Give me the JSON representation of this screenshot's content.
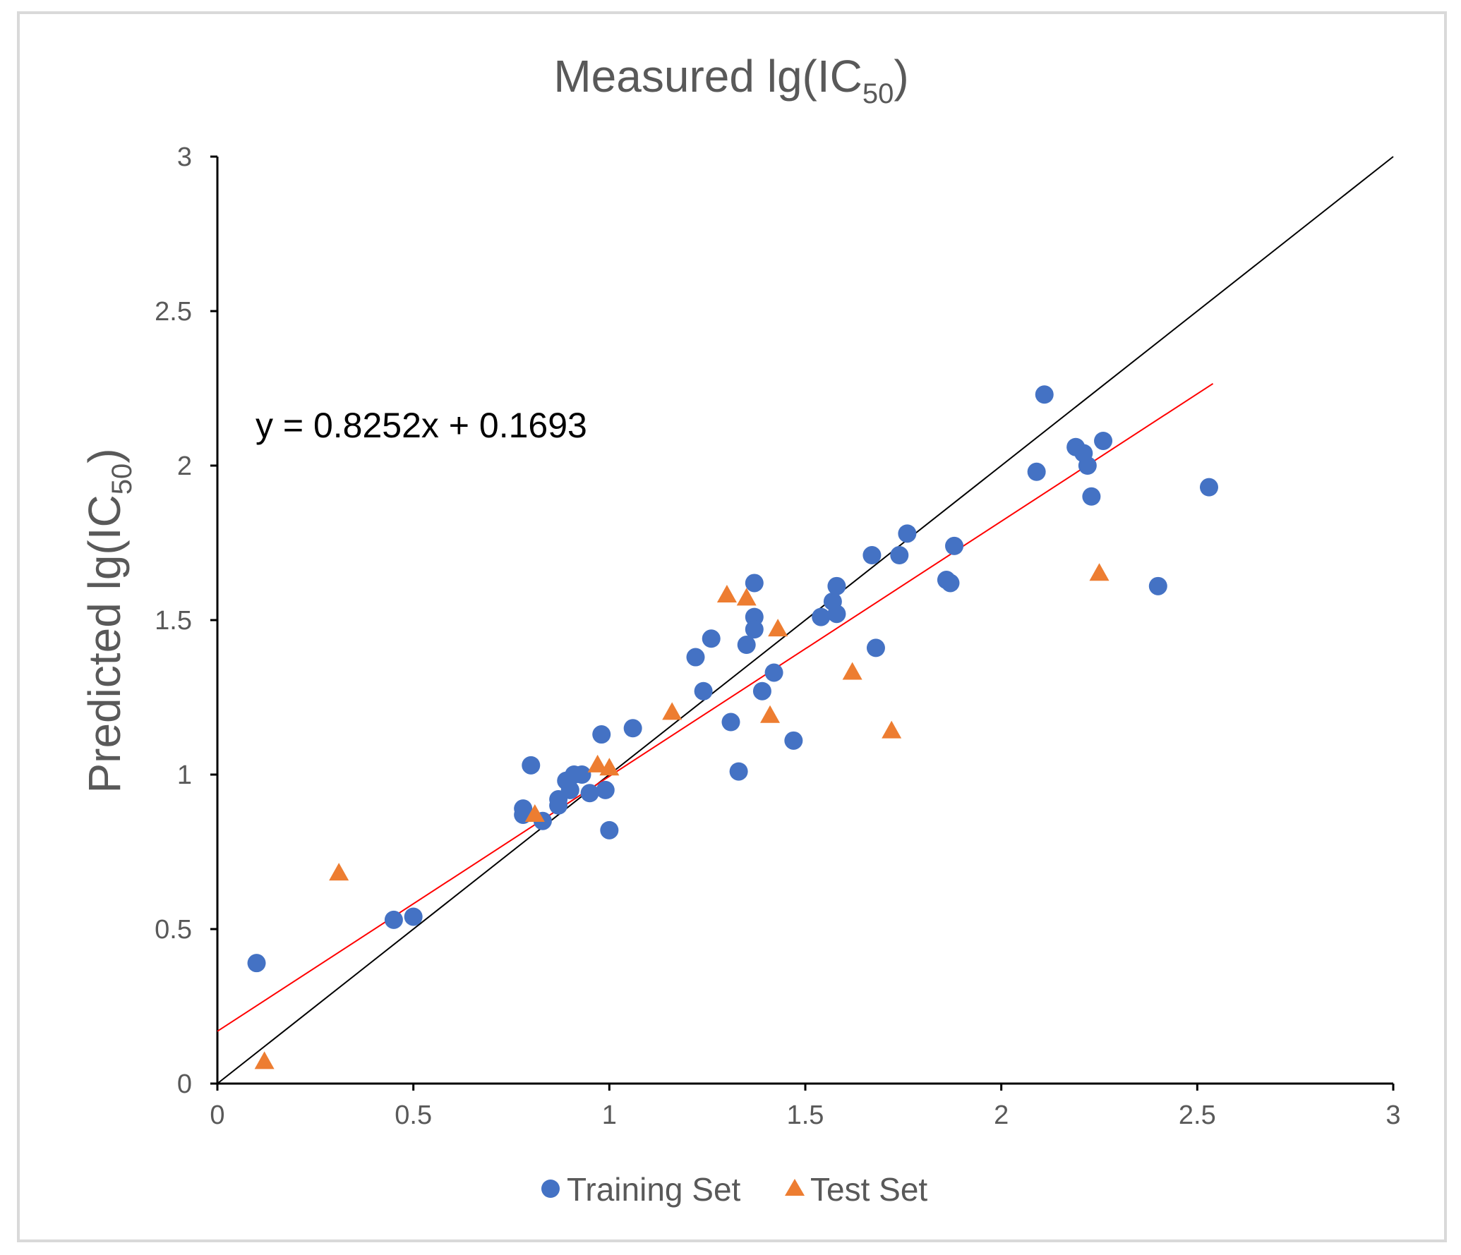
{
  "chart_data": {
    "type": "scatter",
    "title": "Measured lg(IC",
    "title_sub": "50",
    "title_close": ")",
    "xlabel": "",
    "ylabel": "Predicted lg(IC",
    "ylabel_sub": "50",
    "ylabel_close": ")",
    "xlim": [
      0,
      3
    ],
    "ylim": [
      0,
      3
    ],
    "x_ticks": [
      0,
      0.5,
      1,
      1.5,
      2,
      2.5,
      3
    ],
    "x_tick_labels": [
      "0",
      "0.5",
      "1",
      "1.5",
      "2",
      "2.5",
      "3"
    ],
    "y_ticks": [
      0,
      0.5,
      1,
      1.5,
      2,
      2.5,
      3
    ],
    "y_tick_labels": [
      "0",
      "0.5",
      "1",
      "1.5",
      "2",
      "2.5",
      "3"
    ],
    "grid": false,
    "legend_position": "bottom",
    "equation_label": "y = 0.8252x + 0.1693",
    "reference_line": {
      "name": "y = x",
      "slope": 1,
      "intercept": 0,
      "x_range": [
        0,
        3
      ],
      "color": "#000000"
    },
    "fit_line": {
      "slope": 0.8252,
      "intercept": 0.1693,
      "x_range": [
        0,
        2.54
      ],
      "color": "#ff0000"
    },
    "series": [
      {
        "name": "Training Set",
        "marker": "circle",
        "color": "#4472c4",
        "points": [
          [
            0.1,
            0.39
          ],
          [
            0.45,
            0.53
          ],
          [
            0.5,
            0.54
          ],
          [
            0.78,
            0.87
          ],
          [
            0.78,
            0.89
          ],
          [
            0.8,
            1.03
          ],
          [
            0.83,
            0.85
          ],
          [
            0.87,
            0.9
          ],
          [
            0.87,
            0.92
          ],
          [
            0.89,
            0.98
          ],
          [
            0.9,
            0.95
          ],
          [
            0.91,
            1.0
          ],
          [
            0.93,
            1.0
          ],
          [
            0.95,
            0.94
          ],
          [
            0.98,
            1.13
          ],
          [
            0.99,
            0.95
          ],
          [
            1.0,
            0.82
          ],
          [
            1.06,
            1.15
          ],
          [
            1.22,
            1.38
          ],
          [
            1.24,
            1.27
          ],
          [
            1.26,
            1.44
          ],
          [
            1.31,
            1.17
          ],
          [
            1.33,
            1.01
          ],
          [
            1.35,
            1.42
          ],
          [
            1.37,
            1.62
          ],
          [
            1.37,
            1.51
          ],
          [
            1.37,
            1.47
          ],
          [
            1.39,
            1.27
          ],
          [
            1.42,
            1.33
          ],
          [
            1.47,
            1.11
          ],
          [
            1.54,
            1.51
          ],
          [
            1.57,
            1.56
          ],
          [
            1.58,
            1.61
          ],
          [
            1.58,
            1.52
          ],
          [
            1.67,
            1.71
          ],
          [
            1.68,
            1.41
          ],
          [
            1.74,
            1.71
          ],
          [
            1.76,
            1.78
          ],
          [
            1.86,
            1.63
          ],
          [
            1.87,
            1.62
          ],
          [
            1.88,
            1.74
          ],
          [
            2.09,
            1.98
          ],
          [
            2.11,
            2.23
          ],
          [
            2.19,
            2.06
          ],
          [
            2.21,
            2.04
          ],
          [
            2.22,
            2.0
          ],
          [
            2.23,
            1.9
          ],
          [
            2.26,
            2.08
          ],
          [
            2.4,
            1.61
          ],
          [
            2.53,
            1.93
          ]
        ]
      },
      {
        "name": "Test Set",
        "marker": "triangle",
        "color": "#ed7d31",
        "points": [
          [
            0.12,
            0.07
          ],
          [
            0.31,
            0.68
          ],
          [
            0.81,
            0.87
          ],
          [
            0.97,
            1.03
          ],
          [
            1.0,
            1.02
          ],
          [
            1.16,
            1.2
          ],
          [
            1.3,
            1.58
          ],
          [
            1.35,
            1.57
          ],
          [
            1.41,
            1.19
          ],
          [
            1.43,
            1.47
          ],
          [
            1.62,
            1.33
          ],
          [
            1.72,
            1.14
          ],
          [
            2.25,
            1.65
          ]
        ]
      }
    ]
  }
}
